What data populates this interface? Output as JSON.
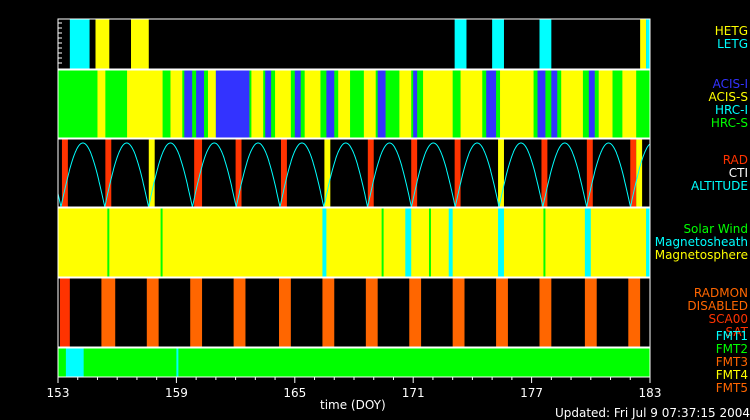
{
  "chart_data": {
    "type": "timeline",
    "xlabel": "time (DOY)",
    "xlim": [
      153,
      183
    ],
    "xticks": [
      153,
      159,
      165,
      171,
      177,
      183
    ],
    "updated": "Updated: Fri Jul  9 07:37:15 2004",
    "panels": [
      {
        "name": "grating",
        "background": "#000000",
        "legend": [
          {
            "label": "HETG",
            "color": "#ffff00"
          },
          {
            "label": "LETG",
            "color": "#00ffff"
          }
        ],
        "segments": [
          {
            "start": 153.6,
            "end": 154.6,
            "color": "#00ffff"
          },
          {
            "start": 154.9,
            "end": 155.6,
            "color": "#ffff00"
          },
          {
            "start": 156.7,
            "end": 157.6,
            "color": "#ffff00"
          },
          {
            "start": 173.1,
            "end": 173.7,
            "color": "#00ffff"
          },
          {
            "start": 175.0,
            "end": 175.6,
            "color": "#00ffff"
          },
          {
            "start": 177.4,
            "end": 178.0,
            "color": "#00ffff"
          },
          {
            "start": 182.5,
            "end": 182.8,
            "color": "#ffff00"
          },
          {
            "start": 182.8,
            "end": 183.0,
            "color": "#00ffff"
          }
        ]
      },
      {
        "name": "instrument",
        "background": "#00ff00",
        "legend": [
          {
            "label": "ACIS-I",
            "color": "#3333ff"
          },
          {
            "label": "ACIS-S",
            "color": "#ffff00"
          },
          {
            "label": "HRC-I",
            "color": "#00ffff"
          },
          {
            "label": "HRC-S",
            "color": "#00ff00"
          }
        ],
        "segments": [
          {
            "start": 155.0,
            "end": 155.4,
            "color": "#ffff00"
          },
          {
            "start": 156.5,
            "end": 158.3,
            "color": "#ffff00"
          },
          {
            "start": 158.7,
            "end": 159.3,
            "color": "#ffff00"
          },
          {
            "start": 159.4,
            "end": 159.8,
            "color": "#3333ff"
          },
          {
            "start": 160.0,
            "end": 160.4,
            "color": "#3333ff"
          },
          {
            "start": 160.6,
            "end": 161.0,
            "color": "#ffff00"
          },
          {
            "start": 161.0,
            "end": 162.7,
            "color": "#3333ff"
          },
          {
            "start": 162.8,
            "end": 163.4,
            "color": "#ffff00"
          },
          {
            "start": 163.5,
            "end": 163.8,
            "color": "#3333ff"
          },
          {
            "start": 164.0,
            "end": 164.8,
            "color": "#ffff00"
          },
          {
            "start": 165.0,
            "end": 165.3,
            "color": "#3333ff"
          },
          {
            "start": 165.5,
            "end": 166.3,
            "color": "#ffff00"
          },
          {
            "start": 166.6,
            "end": 167.0,
            "color": "#3333ff"
          },
          {
            "start": 167.2,
            "end": 167.8,
            "color": "#ffff00"
          },
          {
            "start": 168.5,
            "end": 169.1,
            "color": "#ffff00"
          },
          {
            "start": 169.2,
            "end": 169.6,
            "color": "#3333ff"
          },
          {
            "start": 170.3,
            "end": 170.9,
            "color": "#ffff00"
          },
          {
            "start": 171.0,
            "end": 171.2,
            "color": "#3333ff"
          },
          {
            "start": 171.5,
            "end": 173.0,
            "color": "#ffff00"
          },
          {
            "start": 173.4,
            "end": 174.5,
            "color": "#ffff00"
          },
          {
            "start": 174.7,
            "end": 175.2,
            "color": "#3333ff"
          },
          {
            "start": 175.4,
            "end": 177.1,
            "color": "#ffff00"
          },
          {
            "start": 177.3,
            "end": 177.7,
            "color": "#3333ff"
          },
          {
            "start": 178.0,
            "end": 178.3,
            "color": "#3333ff"
          },
          {
            "start": 178.5,
            "end": 179.6,
            "color": "#ffff00"
          },
          {
            "start": 179.9,
            "end": 180.2,
            "color": "#3333ff"
          },
          {
            "start": 180.4,
            "end": 181.1,
            "color": "#ffff00"
          },
          {
            "start": 181.6,
            "end": 182.3,
            "color": "#ffff00"
          }
        ]
      },
      {
        "name": "radiation",
        "background": "#000000",
        "legend": [
          {
            "label": "RAD",
            "color": "#ff3300"
          },
          {
            "label": "CTI",
            "color": "#ffffff"
          },
          {
            "label": "ALTITUDE",
            "color": "#00ffff"
          }
        ],
        "segments": [
          {
            "start": 153.2,
            "end": 153.5,
            "color": "#ff3300"
          },
          {
            "start": 155.4,
            "end": 155.7,
            "color": "#ff3300"
          },
          {
            "start": 157.6,
            "end": 157.9,
            "color": "#ffff00"
          },
          {
            "start": 159.9,
            "end": 160.3,
            "color": "#ff3300"
          },
          {
            "start": 162.0,
            "end": 162.3,
            "color": "#ff3300"
          },
          {
            "start": 164.3,
            "end": 164.6,
            "color": "#ff3300"
          },
          {
            "start": 166.5,
            "end": 166.8,
            "color": "#ffff00"
          },
          {
            "start": 168.7,
            "end": 169.0,
            "color": "#ff3300"
          },
          {
            "start": 170.9,
            "end": 171.2,
            "color": "#ff3300"
          },
          {
            "start": 173.1,
            "end": 173.4,
            "color": "#ff3300"
          },
          {
            "start": 175.3,
            "end": 175.6,
            "color": "#ffff00"
          },
          {
            "start": 177.5,
            "end": 177.8,
            "color": "#ff3300"
          },
          {
            "start": 179.8,
            "end": 180.1,
            "color": "#ff3300"
          },
          {
            "start": 182.0,
            "end": 182.3,
            "color": "#ff3300"
          },
          {
            "start": 182.3,
            "end": 182.6,
            "color": "#ffff00"
          }
        ],
        "altitude_period_days": 2.22,
        "altitude_first_perigee": 153.15,
        "altitude_color": "#00ffff"
      },
      {
        "name": "environment",
        "background": "#ffff00",
        "legend": [
          {
            "label": "Solar Wind",
            "color": "#00ff00"
          },
          {
            "label": "Magnetosheath",
            "color": "#00ffff"
          },
          {
            "label": "Magnetosphere",
            "color": "#ffff00"
          }
        ],
        "segments": [
          {
            "start": 155.5,
            "end": 155.6,
            "color": "#00ff00"
          },
          {
            "start": 158.2,
            "end": 158.3,
            "color": "#00ff00"
          },
          {
            "start": 166.4,
            "end": 166.6,
            "color": "#00ffff"
          },
          {
            "start": 169.4,
            "end": 169.5,
            "color": "#00ff00"
          },
          {
            "start": 170.6,
            "end": 170.9,
            "color": "#00ffff"
          },
          {
            "start": 171.8,
            "end": 171.9,
            "color": "#00ff00"
          },
          {
            "start": 172.8,
            "end": 173.0,
            "color": "#00ffff"
          },
          {
            "start": 175.3,
            "end": 175.6,
            "color": "#00ffff"
          },
          {
            "start": 177.6,
            "end": 177.7,
            "color": "#00ff00"
          },
          {
            "start": 179.7,
            "end": 180.0,
            "color": "#00ffff"
          },
          {
            "start": 182.8,
            "end": 183.0,
            "color": "#00ffff"
          }
        ]
      },
      {
        "name": "radmon",
        "background": "#000000",
        "legend": [
          {
            "label": "RADMON",
            "color": "#ff6600"
          },
          {
            "label": "DISABLED",
            "color": "#ff6600"
          },
          {
            "label": "SCA00",
            "color": "#ff3300"
          },
          {
            "label": "SAT",
            "color": "#ff3300"
          }
        ],
        "segments": [
          {
            "start": 153.1,
            "end": 153.6,
            "color": "#ff3300"
          },
          {
            "start": 155.2,
            "end": 155.9,
            "color": "#ff6600"
          },
          {
            "start": 157.5,
            "end": 158.1,
            "color": "#ff6600"
          },
          {
            "start": 159.7,
            "end": 160.3,
            "color": "#ff6600"
          },
          {
            "start": 161.9,
            "end": 162.5,
            "color": "#ff6600"
          },
          {
            "start": 164.2,
            "end": 164.8,
            "color": "#ff6600"
          },
          {
            "start": 166.4,
            "end": 167.0,
            "color": "#ff6600"
          },
          {
            "start": 168.6,
            "end": 169.2,
            "color": "#ff6600"
          },
          {
            "start": 170.8,
            "end": 171.4,
            "color": "#ff6600"
          },
          {
            "start": 173.0,
            "end": 173.6,
            "color": "#ff6600"
          },
          {
            "start": 175.2,
            "end": 175.8,
            "color": "#ff6600"
          },
          {
            "start": 177.4,
            "end": 178.0,
            "color": "#ff6600"
          },
          {
            "start": 179.7,
            "end": 180.3,
            "color": "#ff6600"
          },
          {
            "start": 181.9,
            "end": 182.5,
            "color": "#ff6600"
          }
        ]
      },
      {
        "name": "format",
        "background": "#00ff00",
        "legend": [
          {
            "label": "FMT1",
            "color": "#00ffff"
          },
          {
            "label": "FMT2",
            "color": "#00ff00"
          },
          {
            "label": "FMT3",
            "color": "#ff6600"
          },
          {
            "label": "FMT4",
            "color": "#ffff00"
          },
          {
            "label": "FMT5",
            "color": "#ff6600"
          }
        ],
        "segments": [
          {
            "start": 153.4,
            "end": 154.3,
            "color": "#00ffff"
          },
          {
            "start": 159.0,
            "end": 159.1,
            "color": "#00ffff"
          }
        ]
      }
    ]
  }
}
